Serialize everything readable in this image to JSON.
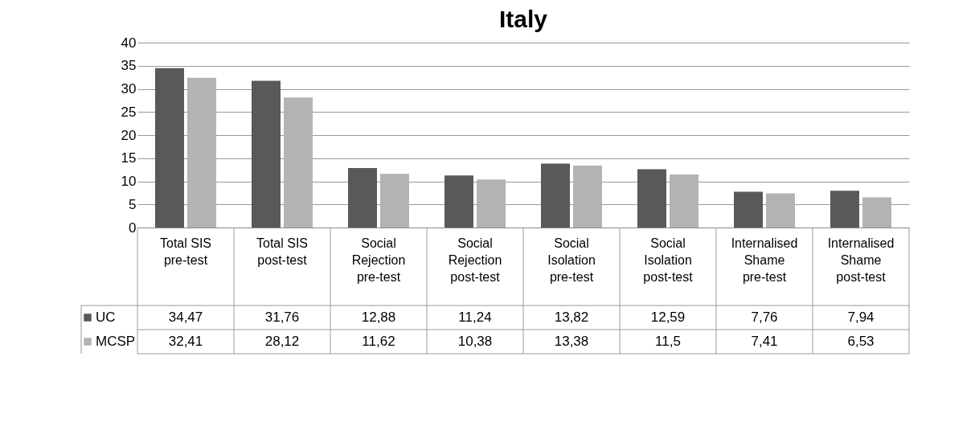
{
  "chart_data": {
    "type": "bar",
    "title": "Italy",
    "categories": [
      "Total SIS pre-test",
      "Total SIS post-test",
      "Social Rejection pre-test",
      "Social Rejection post-test",
      "Social Isolation pre-test",
      "Social Isolation post-test",
      "Internalised Shame pre-test",
      "Internalised Shame post-test"
    ],
    "series": [
      {
        "name": "UC",
        "color": "#595959",
        "values": [
          34.47,
          31.76,
          12.88,
          11.24,
          13.82,
          12.59,
          7.76,
          7.94
        ],
        "value_labels": [
          "34,47",
          "31,76",
          "12,88",
          "11,24",
          "13,82",
          "12,59",
          "7,76",
          "7,94"
        ]
      },
      {
        "name": "MCSP",
        "color": "#b3b3b3",
        "values": [
          32.41,
          28.12,
          11.62,
          10.38,
          13.38,
          11.5,
          7.41,
          6.53
        ],
        "value_labels": [
          "32,41",
          "28,12",
          "11,62",
          "10,38",
          "13,38",
          "11,5",
          "7,41",
          "6,53"
        ]
      }
    ],
    "ylim": [
      0,
      40
    ],
    "yticks": [
      0,
      5,
      10,
      15,
      20,
      25,
      30,
      35,
      40
    ],
    "grid": "y",
    "legend": "bottom left"
  }
}
